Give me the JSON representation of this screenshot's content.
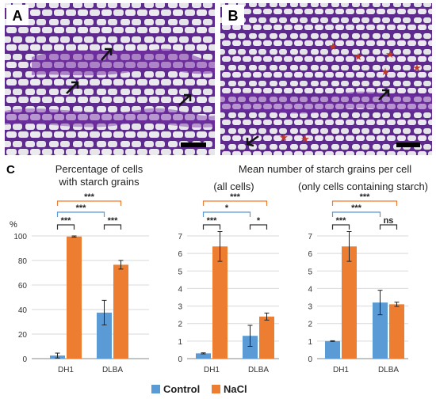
{
  "panels": {
    "a": {
      "letter": "A",
      "arrows": 3
    },
    "b": {
      "letter": "B",
      "arrows": 2,
      "star_color": "#c0392b"
    },
    "c": {
      "letter": "C"
    }
  },
  "titles": {
    "pct_line1": "Percentage of cells",
    "pct_line2": "with starch grains",
    "mean": "Mean number of starch grains per cell",
    "all_cells": "(all cells)",
    "only_cells": "(only cells containing starch)"
  },
  "y_unit": "%",
  "legend": [
    "Control",
    "NaCl"
  ],
  "colors": {
    "control": "#5b9bd5",
    "nacl": "#ed7d31",
    "bracket_blue": "#5b9bd5",
    "bracket_orange": "#ed7d31",
    "bracket_black": "#333333",
    "cell_wall": "#6a2a9a",
    "cell_lumen": "#e6e6ea"
  },
  "chart_data": [
    {
      "type": "bar",
      "title": "Percentage of cells with starch grains",
      "categories": [
        "DH1",
        "DLBA"
      ],
      "ylim": [
        0,
        100
      ],
      "yticks": [
        0,
        20,
        40,
        60,
        80,
        100
      ],
      "series": [
        {
          "name": "Control",
          "values": [
            2.5,
            37.5
          ],
          "errors": [
            2,
            10
          ]
        },
        {
          "name": "NaCl",
          "values": [
            99.5,
            76.5
          ],
          "errors": [
            0.5,
            3.5
          ]
        }
      ],
      "brackets": [
        {
          "label": "***",
          "from": "DH1.Control",
          "to": "DLBA.NaCl",
          "color": "orange"
        },
        {
          "label": "***",
          "from": "DH1.Control",
          "to": "DLBA.Control",
          "color": "blue"
        },
        {
          "label": "***",
          "from": "DH1.Control",
          "to": "DH1.NaCl",
          "color": "black"
        },
        {
          "label": "***",
          "from": "DLBA.Control",
          "to": "DLBA.NaCl",
          "color": "black"
        }
      ]
    },
    {
      "type": "bar",
      "title": "Mean number of starch grains per cell (all cells)",
      "categories": [
        "DH1",
        "DLBA"
      ],
      "ylim": [
        0,
        7
      ],
      "yticks": [
        0,
        1,
        2,
        3,
        4,
        5,
        6,
        7
      ],
      "series": [
        {
          "name": "Control",
          "values": [
            0.3,
            1.3
          ],
          "errors": [
            0.03,
            0.6
          ]
        },
        {
          "name": "NaCl",
          "values": [
            6.4,
            2.4
          ],
          "errors": [
            0.85,
            0.2
          ]
        }
      ],
      "brackets": [
        {
          "label": "***",
          "from": "DH1.Control",
          "to": "DLBA.NaCl",
          "color": "orange"
        },
        {
          "label": "*",
          "from": "DH1.Control",
          "to": "DLBA.Control",
          "color": "blue"
        },
        {
          "label": "***",
          "from": "DH1.Control",
          "to": "DH1.NaCl",
          "color": "black"
        },
        {
          "label": "*",
          "from": "DLBA.Control",
          "to": "DLBA.NaCl",
          "color": "black"
        }
      ]
    },
    {
      "type": "bar",
      "title": "Mean number of starch grains per cell (only cells containing starch)",
      "categories": [
        "DH1",
        "DLBA"
      ],
      "ylim": [
        0,
        7
      ],
      "yticks": [
        0,
        1,
        2,
        3,
        4,
        5,
        6,
        7
      ],
      "series": [
        {
          "name": "Control",
          "values": [
            1.0,
            3.2
          ],
          "errors": [
            0.02,
            0.7
          ]
        },
        {
          "name": "NaCl",
          "values": [
            6.4,
            3.1
          ],
          "errors": [
            0.85,
            0.12
          ]
        }
      ],
      "brackets": [
        {
          "label": "***",
          "from": "DH1.Control",
          "to": "DLBA.NaCl",
          "color": "orange"
        },
        {
          "label": "***",
          "from": "DH1.Control",
          "to": "DLBA.Control",
          "color": "blue"
        },
        {
          "label": "***",
          "from": "DH1.Control",
          "to": "DH1.NaCl",
          "color": "black"
        },
        {
          "label": "ns",
          "from": "DLBA.Control",
          "to": "DLBA.NaCl",
          "color": "black"
        }
      ]
    }
  ]
}
